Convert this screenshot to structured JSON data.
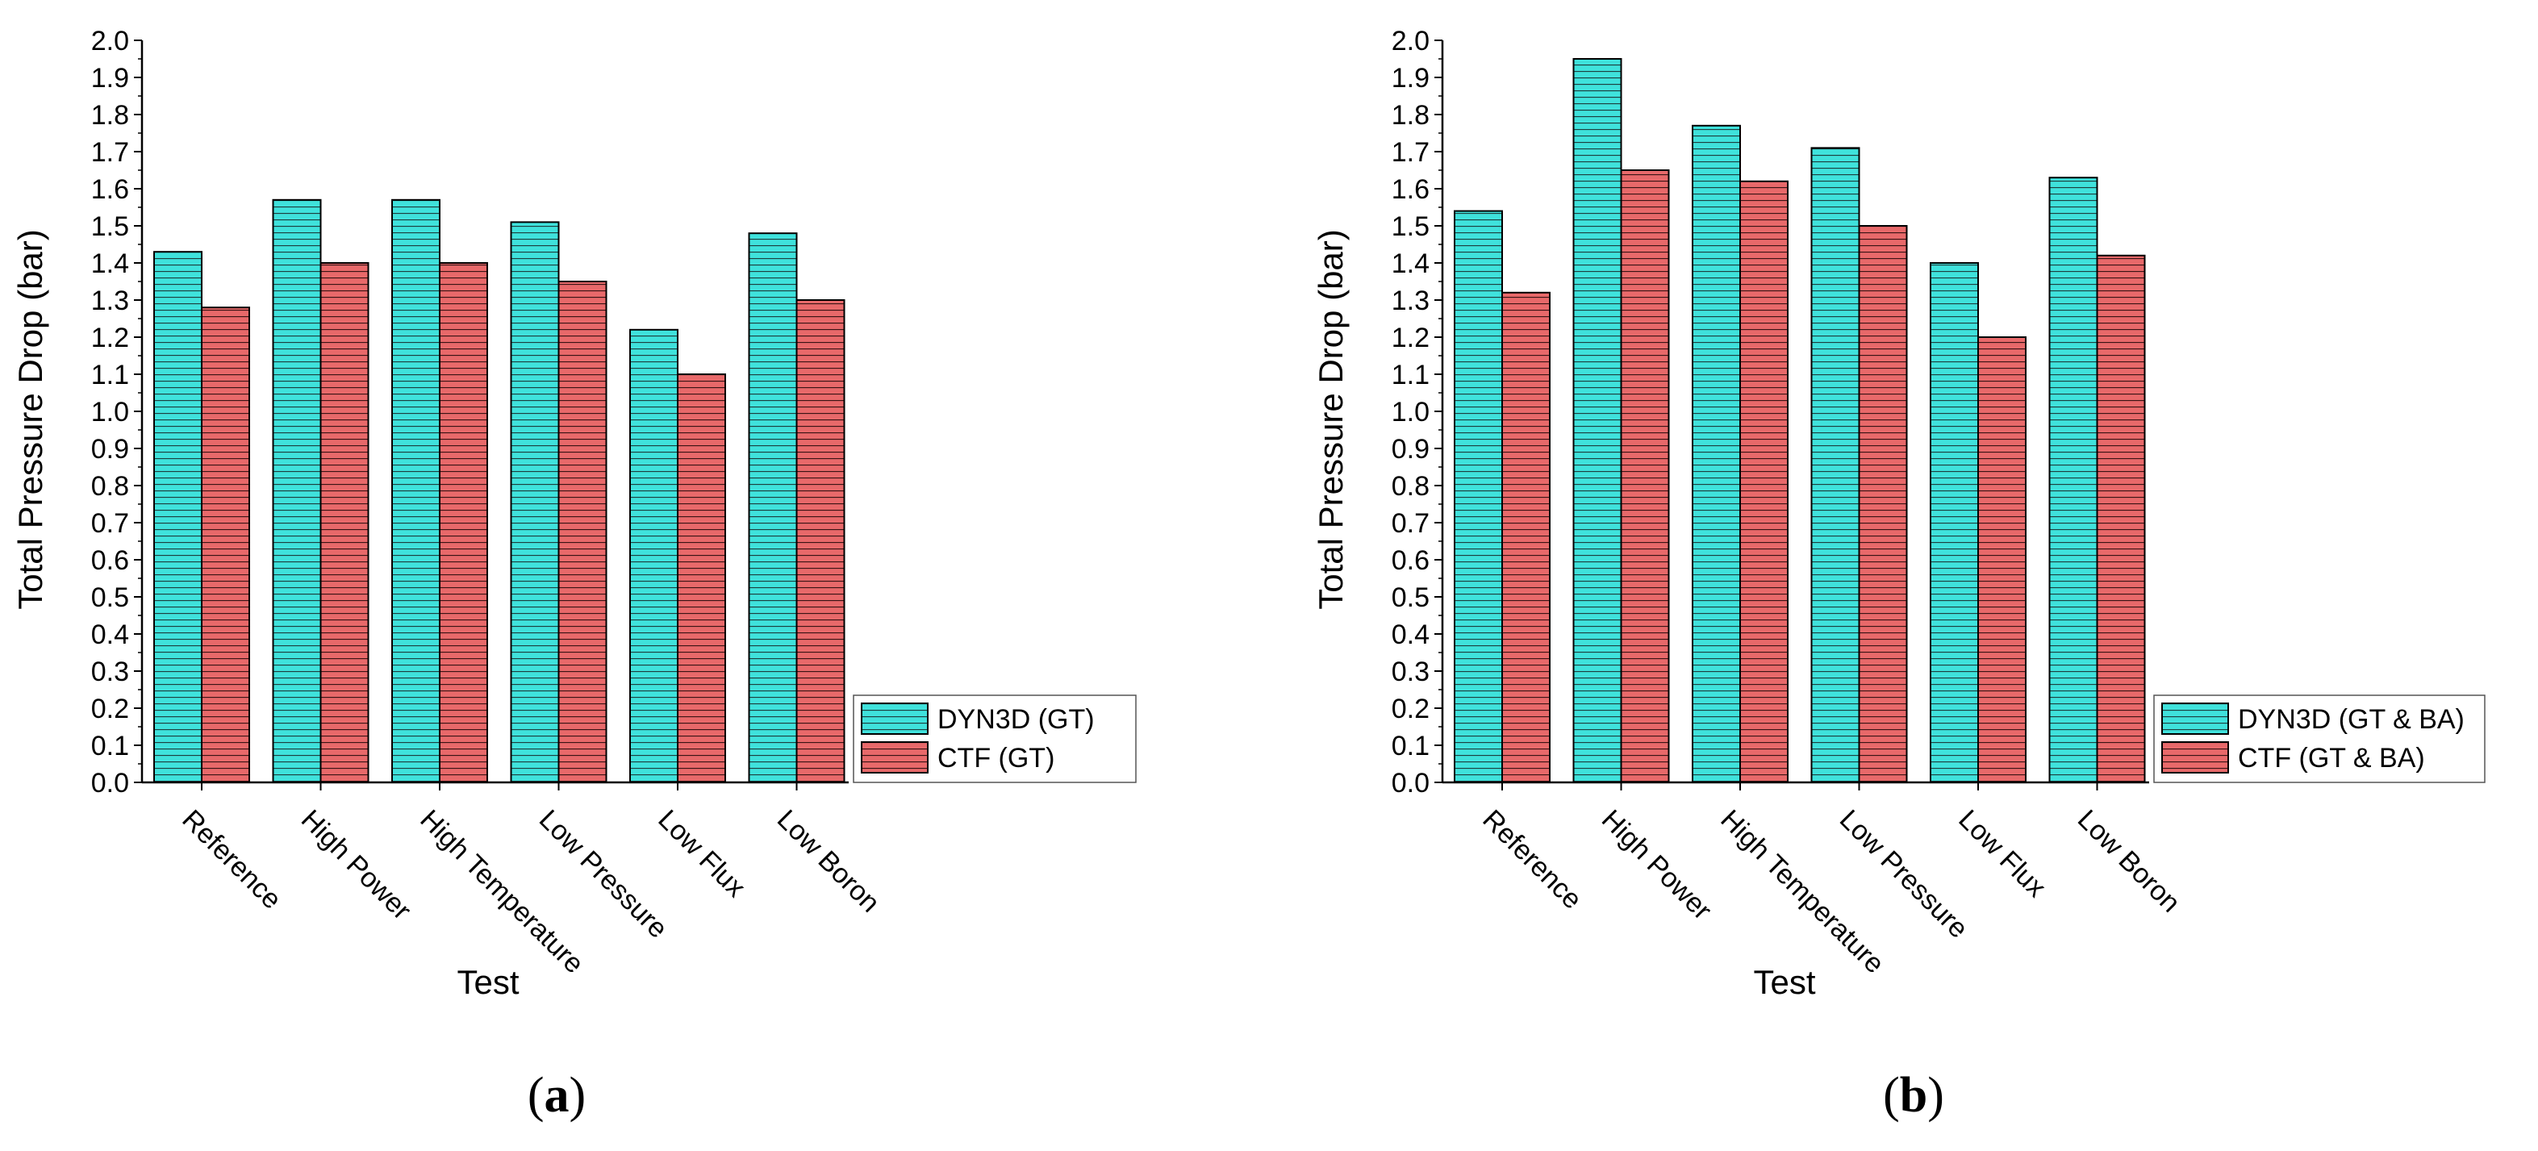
{
  "figure": {
    "panel_labels": [
      "a",
      "b"
    ]
  },
  "colors": {
    "dyn3d": "#3fe2dc",
    "ctf": "#e8696a",
    "hatch": "#1d3f3f",
    "axis": "#000000"
  },
  "chart_data": [
    {
      "type": "bar",
      "title": "",
      "panel": "(a)",
      "xlabel": "Test",
      "ylabel": "Total Pressure Drop (bar)",
      "ylim": [
        0,
        2.0
      ],
      "ytick_step": 0.1,
      "yticks": [
        "0.0",
        "0.1",
        "0.2",
        "0.3",
        "0.4",
        "0.5",
        "0.6",
        "0.7",
        "0.8",
        "0.9",
        "1.0",
        "1.1",
        "1.2",
        "1.3",
        "1.4",
        "1.5",
        "1.6",
        "1.7",
        "1.8",
        "1.9",
        "2.0"
      ],
      "categories": [
        "Reference",
        "High Power",
        "High Temperature",
        "Low Pressure",
        "Low Flux",
        "Low Boron"
      ],
      "series": [
        {
          "name": "DYN3D (GT)",
          "values": [
            1.43,
            1.57,
            1.57,
            1.51,
            1.22,
            1.48
          ]
        },
        {
          "name": "CTF (GT)",
          "values": [
            1.28,
            1.4,
            1.4,
            1.35,
            1.1,
            1.3
          ]
        }
      ],
      "legend": "lower-right"
    },
    {
      "type": "bar",
      "title": "",
      "panel": "(b)",
      "xlabel": "Test",
      "ylabel": "Total Pressure Drop (bar)",
      "ylim": [
        0,
        2.0
      ],
      "ytick_step": 0.1,
      "yticks": [
        "0.0",
        "0.1",
        "0.2",
        "0.3",
        "0.4",
        "0.5",
        "0.6",
        "0.7",
        "0.8",
        "0.9",
        "1.0",
        "1.1",
        "1.2",
        "1.3",
        "1.4",
        "1.5",
        "1.6",
        "1.7",
        "1.8",
        "1.9",
        "2.0"
      ],
      "categories": [
        "Reference",
        "High Power",
        "High Temperature",
        "Low Pressure",
        "Low Flux",
        "Low Boron"
      ],
      "series": [
        {
          "name": "DYN3D (GT & BA)",
          "values": [
            1.54,
            1.95,
            1.77,
            1.71,
            1.4,
            1.63
          ]
        },
        {
          "name": "CTF (GT & BA)",
          "values": [
            1.32,
            1.65,
            1.62,
            1.5,
            1.2,
            1.42
          ]
        }
      ],
      "legend": "lower-right"
    }
  ]
}
